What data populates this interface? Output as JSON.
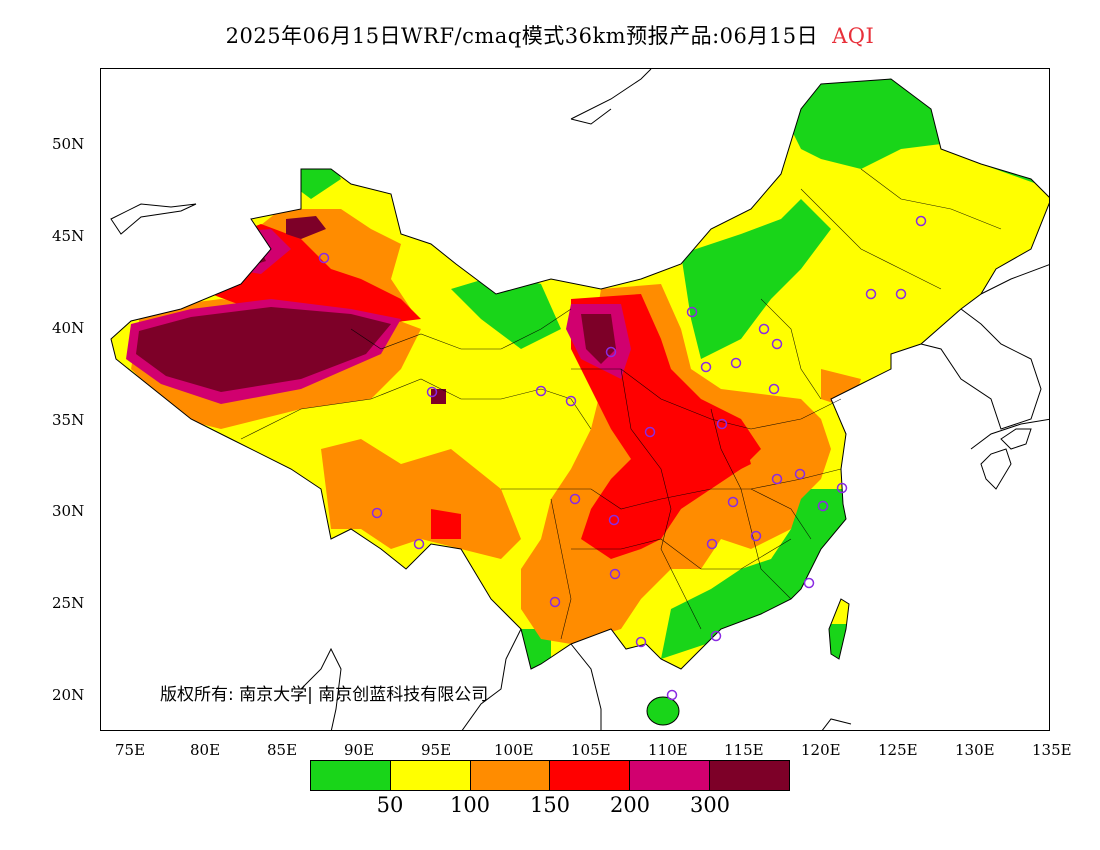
{
  "title": {
    "text": "2025年06月15日WRF/cmaq模式36km预报产品:06月15日",
    "highlight": "AQI"
  },
  "colors": {
    "good": "#19d519",
    "moderate": "#ffff00",
    "usg": "#ff8c00",
    "unhealthy": "#ff0000",
    "very_unhealthy": "#d1006f",
    "hazardous": "#7d0028",
    "station_marker": "#8a2be2"
  },
  "map": {
    "lon_range": [
      73,
      135
    ],
    "lat_range": [
      18,
      54
    ],
    "lat_ticks": [
      "20N",
      "25N",
      "30N",
      "35N",
      "40N",
      "45N",
      "50N"
    ],
    "lon_ticks": [
      "75E",
      "80E",
      "85E",
      "90E",
      "95E",
      "100E",
      "105E",
      "110E",
      "115E",
      "120E",
      "125E",
      "130E",
      "135E"
    ]
  },
  "copyright": "版权所有: 南京大学| 南京创蓝科技有限公司",
  "legend": {
    "swatch_colors": [
      "#19d519",
      "#ffff00",
      "#ff8c00",
      "#ff0000",
      "#d1006f",
      "#7d0028"
    ],
    "labels": [
      "50",
      "100",
      "150",
      "200",
      "300"
    ]
  }
}
